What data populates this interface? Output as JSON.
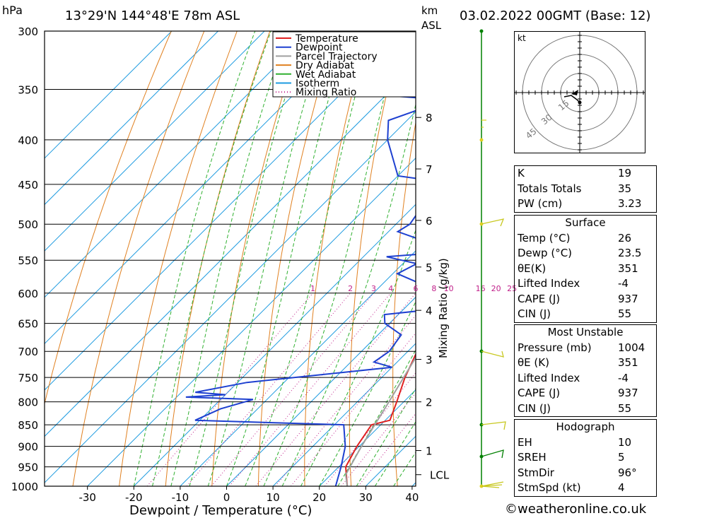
{
  "header": {
    "pressure_unit": "hPa",
    "location": "13°29'N  144°48'E  78m  ASL",
    "height_unit_1": "km",
    "height_unit_2": "ASL",
    "datetime": "03.02.2022  00GMT  (Base: 12)"
  },
  "chart_data": {
    "type": "line",
    "title": "",
    "xlabel": "Dewpoint / Temperature (°C)",
    "ylabel": "hPa",
    "mixing_ratio_label": "Mixing Ratio (g/kg)",
    "pressure_ticks": [
      300,
      350,
      400,
      450,
      500,
      550,
      600,
      650,
      700,
      750,
      800,
      850,
      900,
      950,
      1000
    ],
    "temperature_ticks": [
      -30,
      -20,
      -10,
      0,
      10,
      20,
      30,
      40
    ],
    "xlim": [
      -40,
      40
    ],
    "ylim": [
      1000,
      300
    ],
    "y_scale": "log",
    "height_ticks_km": [
      {
        "km": "1",
        "p": 910
      },
      {
        "km": "2",
        "p": 800
      },
      {
        "km": "3",
        "p": 715
      },
      {
        "km": "4",
        "p": 628
      },
      {
        "km": "5",
        "p": 560
      },
      {
        "km": "6",
        "p": 495
      },
      {
        "km": "7",
        "p": 432
      },
      {
        "km": "8",
        "p": 377
      }
    ],
    "lcl_label": "LCL",
    "lcl_pressure": 970,
    "mixing_ratio_values": [
      "1",
      "2",
      "3",
      "4",
      "6",
      "8",
      "10",
      "16",
      "20",
      "25"
    ],
    "legend": [
      "Temperature",
      "Dewpoint",
      "Parcel Trajectory",
      "Dry Adiabat",
      "Wet Adiabat",
      "Isotherm",
      "Mixing Ratio"
    ],
    "legend_position": "top-right",
    "series": [
      {
        "name": "Temperature",
        "color": "#e02020",
        "points": [
          [
            1000,
            26
          ],
          [
            950,
            21.5
          ],
          [
            900,
            19.5
          ],
          [
            850,
            18
          ],
          [
            840,
            21
          ],
          [
            800,
            18.5
          ],
          [
            750,
            15
          ],
          [
            700,
            12
          ],
          [
            650,
            8
          ],
          [
            600,
            5
          ],
          [
            550,
            0
          ],
          [
            500,
            -5
          ],
          [
            450,
            -11
          ],
          [
            440,
            -11.5
          ],
          [
            400,
            -16
          ],
          [
            350,
            -23
          ],
          [
            330,
            -28
          ],
          [
            300,
            -32
          ]
        ]
      },
      {
        "name": "Dewpoint",
        "color": "#1e40d0",
        "points": [
          [
            1000,
            23.5
          ],
          [
            950,
            20.5
          ],
          [
            900,
            17
          ],
          [
            850,
            12
          ],
          [
            845,
            -5
          ],
          [
            840,
            -21
          ],
          [
            815,
            -18
          ],
          [
            795,
            -13
          ],
          [
            790,
            -28
          ],
          [
            785,
            -20
          ],
          [
            780,
            -27
          ],
          [
            760,
            -18
          ],
          [
            730,
            10
          ],
          [
            720,
            5
          ],
          [
            700,
            6
          ],
          [
            670,
            5
          ],
          [
            650,
            -1
          ],
          [
            635,
            -3
          ],
          [
            625,
            8
          ],
          [
            600,
            0
          ],
          [
            585,
            -2
          ],
          [
            570,
            -9
          ],
          [
            555,
            -7
          ],
          [
            545,
            -15
          ],
          [
            540,
            -6
          ],
          [
            530,
            -6
          ],
          [
            510,
            -18
          ],
          [
            500,
            -17
          ],
          [
            480,
            -18
          ],
          [
            470,
            -17
          ],
          [
            455,
            -14
          ],
          [
            450,
            -15
          ],
          [
            440,
            -30
          ],
          [
            400,
            -40
          ],
          [
            380,
            -44
          ],
          [
            360,
            -36
          ],
          [
            355,
            -52
          ],
          [
            340,
            -56
          ],
          [
            300,
            -56
          ]
        ]
      },
      {
        "name": "Parcel Trajectory",
        "color": "#a0a0a0",
        "points": [
          [
            1000,
            26
          ],
          [
            970,
            23.2
          ],
          [
            900,
            20.5
          ],
          [
            800,
            16.8
          ],
          [
            700,
            12.5
          ],
          [
            600,
            7
          ],
          [
            500,
            0
          ],
          [
            400,
            -10
          ],
          [
            350,
            -16
          ],
          [
            300,
            -24
          ]
        ]
      }
    ]
  },
  "hodograph": {
    "unit": "kt",
    "ring_labels": [
      "15",
      "30",
      "45"
    ]
  },
  "wind_profile": {
    "line_color": "#008000"
  },
  "indices": {
    "table1": [
      {
        "label": "K",
        "value": "19"
      },
      {
        "label": "Totals Totals",
        "value": "35"
      },
      {
        "label": "PW (cm)",
        "value": "3.23"
      }
    ],
    "surface": {
      "title": "Surface",
      "rows": [
        {
          "label": "Temp (°C)",
          "value": "26"
        },
        {
          "label": "Dewp (°C)",
          "value": "23.5"
        },
        {
          "label": "θE(K)",
          "value": "351"
        },
        {
          "label": "Lifted Index",
          "value": "-4"
        },
        {
          "label": "CAPE (J)",
          "value": "937"
        },
        {
          "label": "CIN (J)",
          "value": "55"
        }
      ]
    },
    "most_unstable": {
      "title": "Most Unstable",
      "rows": [
        {
          "label": "Pressure (mb)",
          "value": "1004"
        },
        {
          "label": "θE (K)",
          "value": "351"
        },
        {
          "label": "Lifted Index",
          "value": "-4"
        },
        {
          "label": "CAPE (J)",
          "value": "937"
        },
        {
          "label": "CIN (J)",
          "value": "55"
        }
      ]
    },
    "hodograph": {
      "title": "Hodograph",
      "rows": [
        {
          "label": "EH",
          "value": "10"
        },
        {
          "label": "SREH",
          "value": "5"
        },
        {
          "label": "StmDir",
          "value": "96°"
        },
        {
          "label": "StmSpd (kt)",
          "value": "4"
        }
      ]
    }
  },
  "footer": "©weatheronline.co.uk"
}
